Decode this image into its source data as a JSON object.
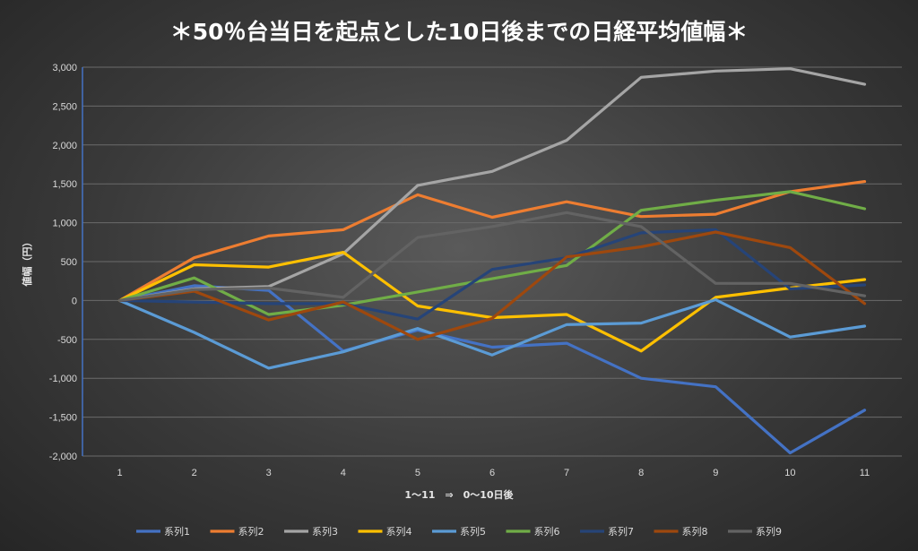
{
  "chart_data": {
    "type": "line",
    "title": "＊50％台当日を起点とした10日後までの日経平均値幅＊",
    "xlabel": "1～11　⇒　0～10日後",
    "ylabel": "値幅（円）",
    "categories": [
      "1",
      "2",
      "3",
      "4",
      "5",
      "6",
      "7",
      "8",
      "9",
      "10",
      "11"
    ],
    "ylim": [
      -2000,
      3000
    ],
    "ytick_step": 500,
    "ytick_labels": [
      "3,000",
      "2,500",
      "2,000",
      "1,500",
      "1,000",
      "500",
      "0",
      "-500",
      "-1,000",
      "-1,500",
      "-2,000"
    ],
    "grid": true,
    "legend_position": "bottom",
    "series": [
      {
        "name": "系列1",
        "color": "#4472c4",
        "values": [
          0,
          190,
          130,
          -650,
          -380,
          -600,
          -550,
          -1000,
          -1110,
          -1960,
          -1410
        ]
      },
      {
        "name": "系列2",
        "color": "#ed7d31",
        "values": [
          0,
          550,
          830,
          910,
          1360,
          1070,
          1270,
          1080,
          1110,
          1400,
          1530
        ]
      },
      {
        "name": "系列3",
        "color": "#a5a5a5",
        "values": [
          0,
          150,
          180,
          600,
          1480,
          1660,
          2060,
          2870,
          2950,
          2980,
          2780
        ]
      },
      {
        "name": "系列4",
        "color": "#ffc000",
        "values": [
          0,
          460,
          430,
          620,
          -70,
          -220,
          -180,
          -650,
          40,
          160,
          270
        ]
      },
      {
        "name": "系列5",
        "color": "#5b9bd5",
        "values": [
          0,
          -410,
          -870,
          -660,
          -360,
          -700,
          -310,
          -290,
          10,
          -470,
          -330
        ]
      },
      {
        "name": "系列6",
        "color": "#70ad47",
        "values": [
          0,
          290,
          -180,
          -60,
          110,
          280,
          450,
          1160,
          1290,
          1400,
          1180
        ]
      },
      {
        "name": "系列7",
        "color": "#264478",
        "values": [
          0,
          -20,
          -40,
          -40,
          -240,
          400,
          550,
          870,
          910,
          150,
          200
        ]
      },
      {
        "name": "系列8",
        "color": "#9e480e",
        "values": [
          0,
          120,
          -250,
          -20,
          -500,
          -230,
          560,
          690,
          880,
          680,
          -40
        ]
      },
      {
        "name": "系列9",
        "color": "#636363",
        "values": [
          0,
          140,
          160,
          40,
          810,
          950,
          1130,
          950,
          220,
          220,
          60
        ]
      }
    ]
  }
}
